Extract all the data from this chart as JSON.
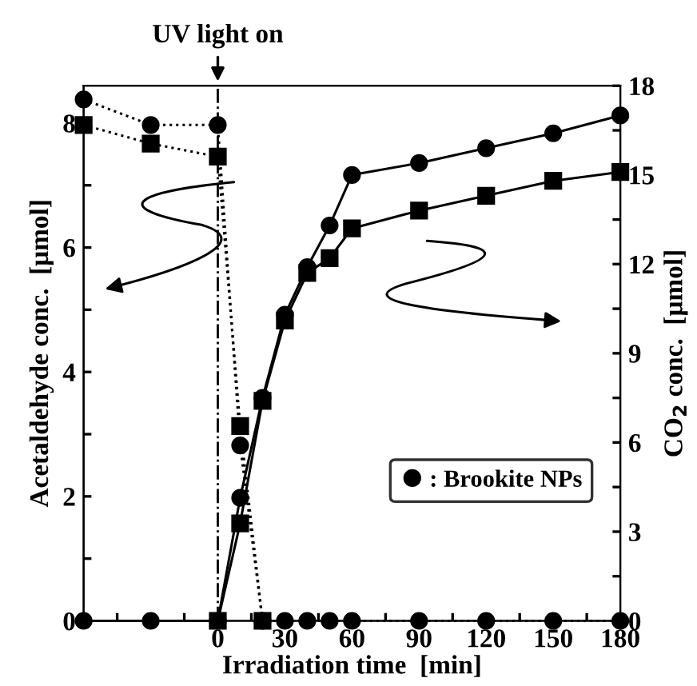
{
  "chart_data": {
    "type": "line",
    "xlabel": "Irradiation time  [min]",
    "ylabel": "Acetaldehyde conc.  [μmol]",
    "y2label": "CO$_{2}$ conc.  [μmol]",
    "xlim": [
      -60,
      180
    ],
    "ylim": [
      0,
      8.6
    ],
    "y2lim": [
      0,
      18
    ],
    "xticks": [
      {
        "value": -45,
        "label": null
      },
      {
        "value": -30,
        "label": null
      },
      {
        "value": -15,
        "label": null
      },
      0,
      {
        "value": 15,
        "label": null
      },
      30,
      {
        "value": 45,
        "label": null
      },
      60,
      {
        "value": 75,
        "label": null
      },
      90,
      {
        "value": 105,
        "label": null
      },
      120,
      {
        "value": 135,
        "label": null
      },
      150,
      {
        "value": 165,
        "label": null
      },
      180
    ],
    "yticks": [
      0,
      {
        "value": 1,
        "label": null
      },
      2,
      {
        "value": 3,
        "label": null
      },
      4,
      {
        "value": 5,
        "label": null
      },
      6,
      {
        "value": 7,
        "label": null
      },
      8
    ],
    "y2ticks": [
      0,
      {
        "value": 1.5,
        "label": null
      },
      3,
      {
        "value": 4.5,
        "label": null
      },
      6,
      {
        "value": 7.5,
        "label": null
      },
      9,
      {
        "value": 10.5,
        "label": null
      },
      12,
      {
        "value": 13.5,
        "label": null
      },
      15,
      {
        "value": 16.5,
        "label": null
      },
      18
    ],
    "grid": false,
    "legend": "lower right",
    "ref_lines": [
      {
        "axis": "x",
        "value": 0,
        "label": "UV light on",
        "line_style": "dashdot",
        "color": "#000000"
      }
    ],
    "series": [
      {
        "name": ": Brookite NPs",
        "color": "#000000",
        "marker": "circle",
        "line_style": "dotted",
        "x": [
          -60,
          -30,
          0,
          10,
          20,
          30,
          40,
          50,
          60,
          90,
          120,
          150,
          180
        ],
        "values": [
          8.38,
          7.97,
          7.97,
          2.82,
          0,
          0,
          0,
          0,
          0,
          0,
          0,
          0,
          0
        ]
      },
      {
        "color": "#000000",
        "marker": "square",
        "line_style": "dotted",
        "x": [
          -60,
          -30,
          0,
          10,
          20
        ],
        "values": [
          7.97,
          7.67,
          7.46,
          3.13,
          0
        ]
      },
      {
        "axis": "y2",
        "color": "#000000",
        "marker": "circle",
        "line_style": "solid",
        "x": [
          -60,
          -30,
          0,
          10,
          20,
          30,
          40,
          50,
          60,
          90,
          120,
          150,
          180
        ],
        "values": [
          0,
          0,
          0,
          4.14,
          7.5,
          10.3,
          11.9,
          13.3,
          15.0,
          15.4,
          15.9,
          16.4,
          17.0
        ]
      },
      {
        "axis": "y2",
        "color": "#000000",
        "marker": "square",
        "line_style": "solid",
        "x": [
          0,
          10,
          20,
          30,
          40,
          50,
          60,
          90,
          120,
          150,
          180
        ],
        "values": [
          0,
          3.28,
          7.4,
          10.1,
          11.7,
          12.2,
          13.2,
          13.8,
          14.3,
          14.8,
          15.1
        ]
      }
    ]
  }
}
